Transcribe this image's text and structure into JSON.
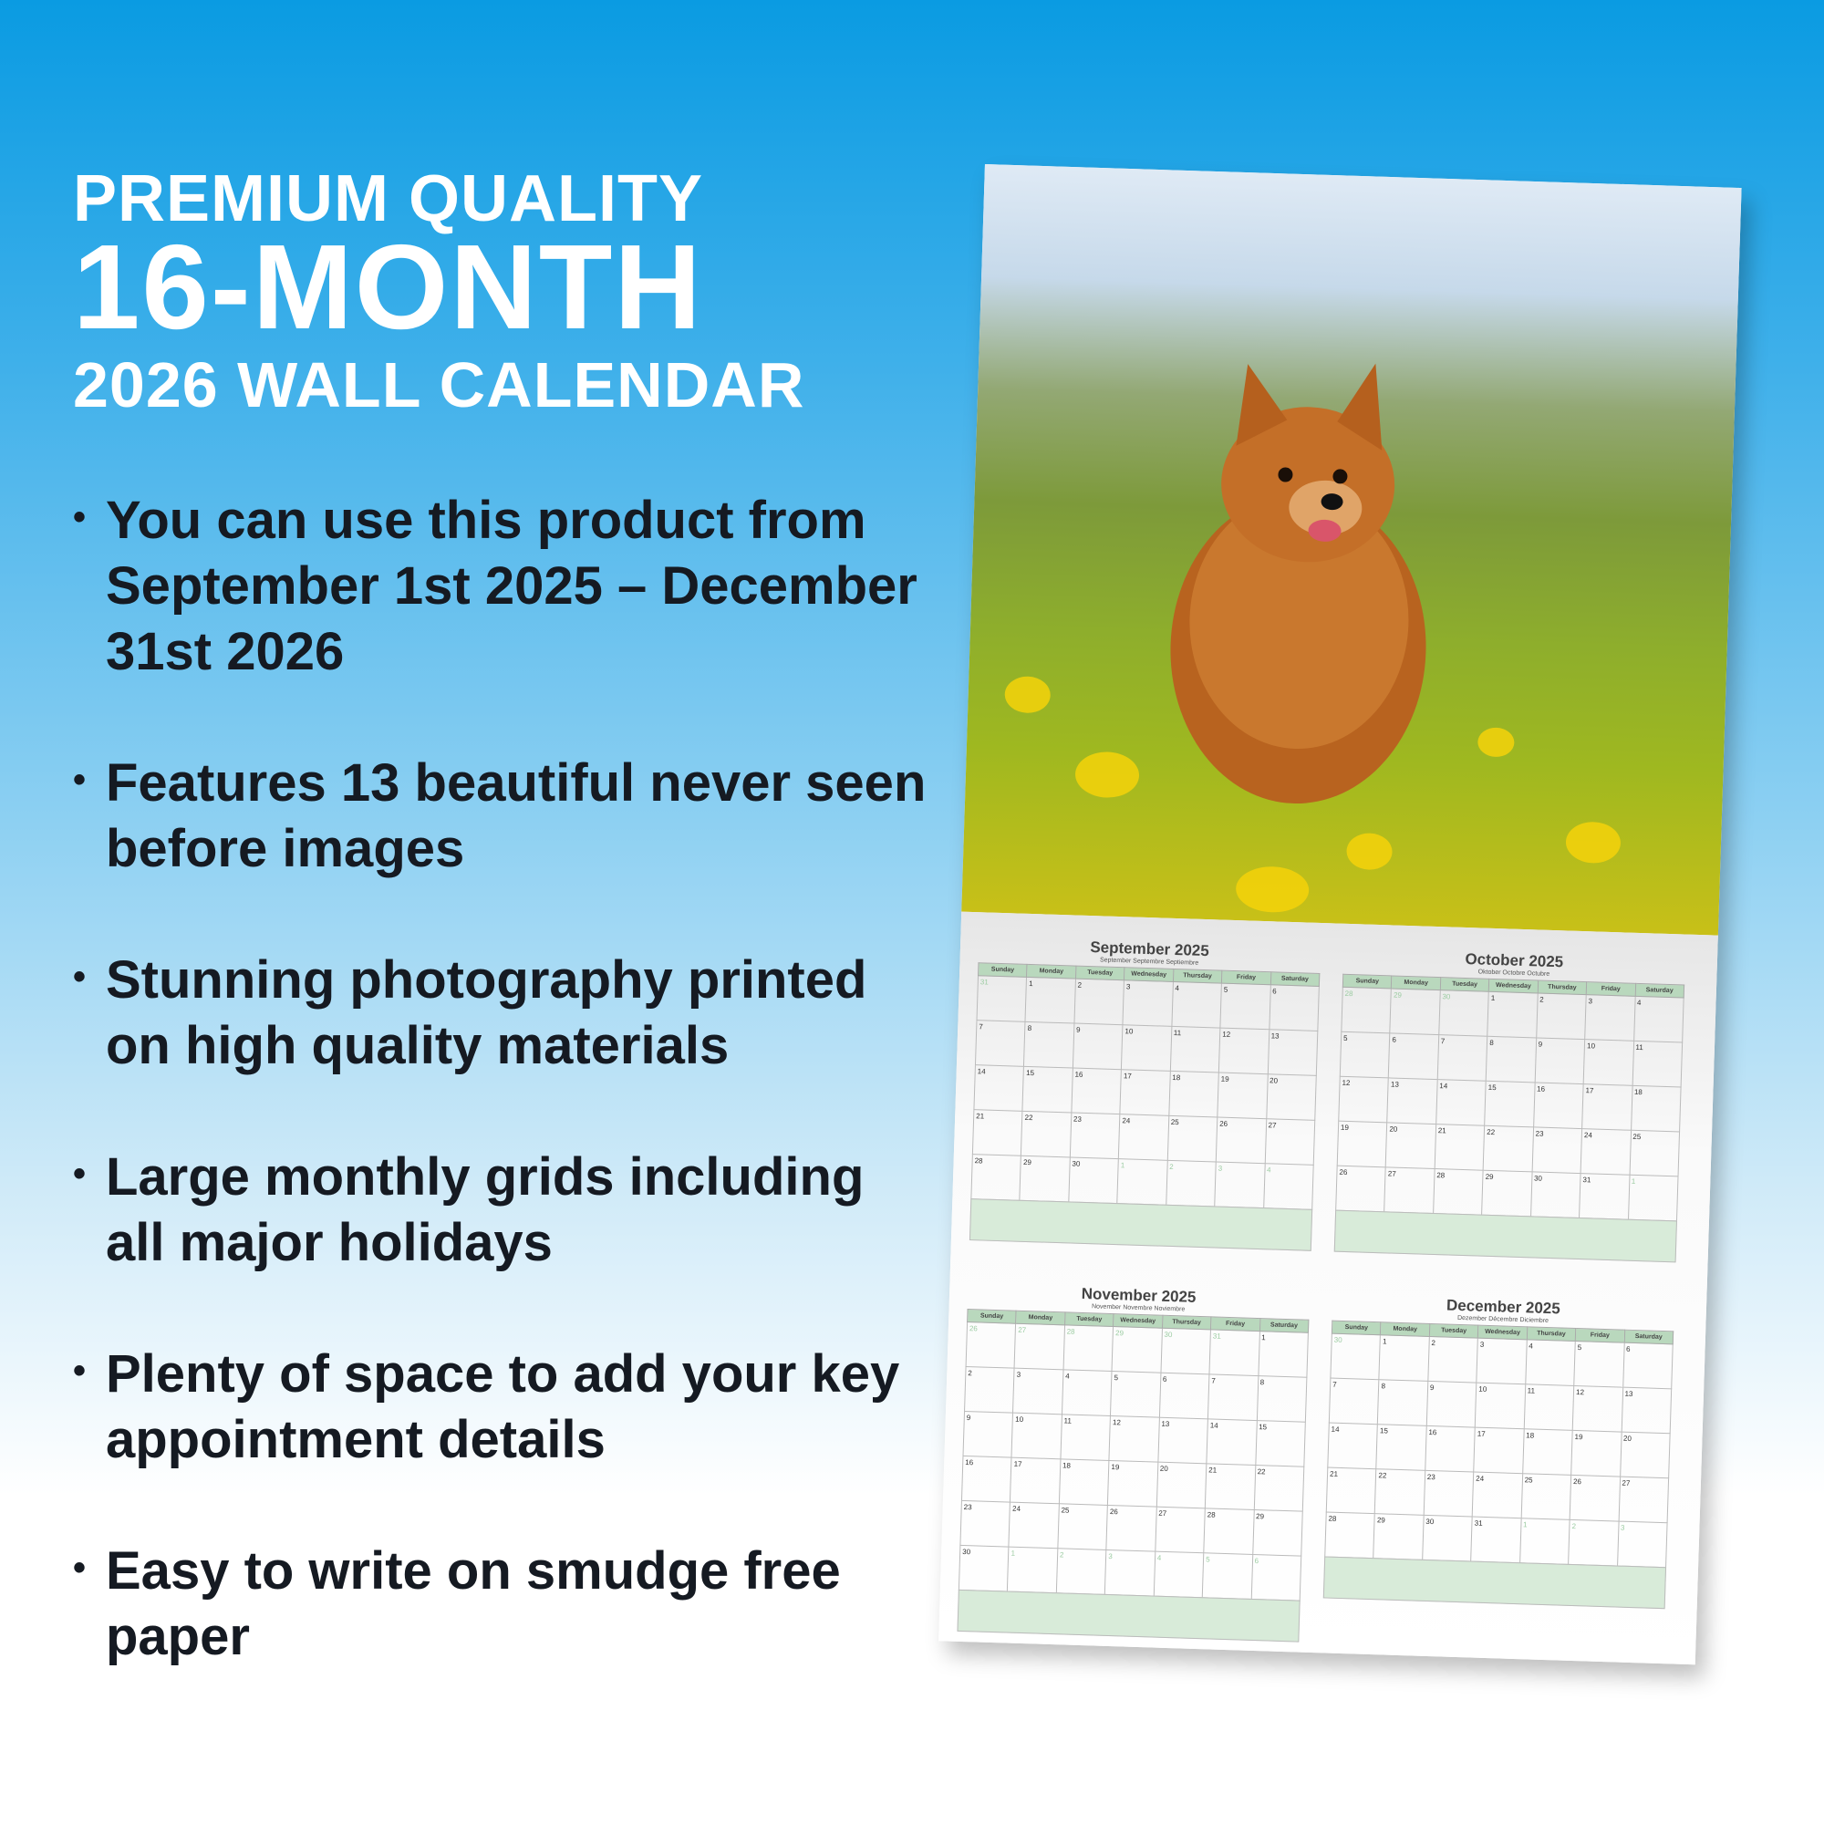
{
  "headline": {
    "line1": "PREMIUM QUALITY",
    "line2": "16-MONTH",
    "line3": "2026 WALL CALENDAR"
  },
  "bullets": [
    "You can use this product from September 1st 2025 – December 31st 2026",
    "Features 13 beautiful never seen before images",
    "Stunning photography printed on high quality materials",
    "Large monthly grids including all major holidays",
    "Plenty of space to add your key appointment details",
    "Easy to write on smudge free paper"
  ],
  "colors": {
    "bg_top": "#0a9be2",
    "header_green": "#b9d8bd",
    "text_dark": "#151a22"
  },
  "calendar": {
    "weekdays": [
      "Sunday",
      "Monday",
      "Tuesday",
      "Wednesday",
      "Thursday",
      "Friday",
      "Saturday"
    ],
    "months": [
      {
        "title": "September 2025",
        "sub": "September  Septembre  Septiembre",
        "prev": [
          31
        ],
        "days": 30
      },
      {
        "title": "October 2025",
        "sub": "Oktober  Octobre  Octubre",
        "prev": [
          28,
          29,
          30
        ],
        "days": 31
      },
      {
        "title": "November 2025",
        "sub": "November  Novembre  Noviembre",
        "prev": [
          26,
          27,
          28,
          29,
          30,
          31
        ],
        "days": 30
      },
      {
        "title": "December 2025",
        "sub": "Dezember  Décembre  Diciembre",
        "prev": [
          30
        ],
        "days": 31
      }
    ]
  }
}
